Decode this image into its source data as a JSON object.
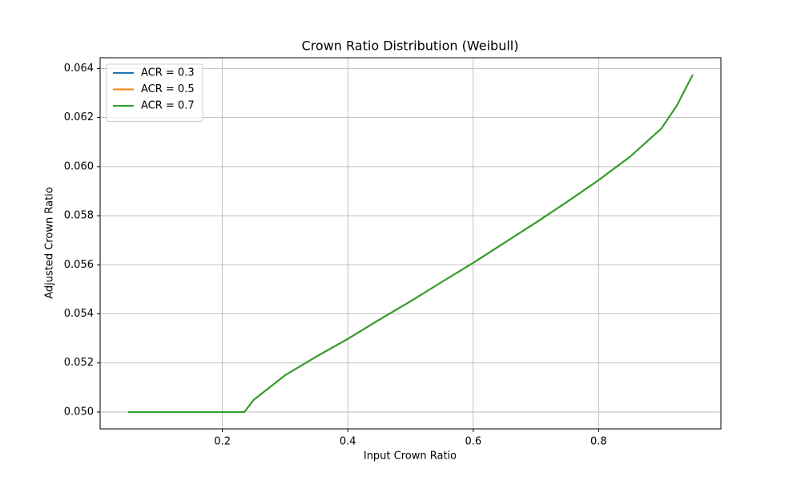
{
  "chart_data": {
    "type": "line",
    "title": "Crown Ratio Distribution (Weibull)",
    "x_label": "Input Crown Ratio",
    "y_label": "Adjusted Crown Ratio",
    "x": [
      0.05,
      0.1,
      0.15,
      0.2,
      0.235,
      0.25,
      0.3,
      0.35,
      0.4,
      0.45,
      0.5,
      0.55,
      0.6,
      0.65,
      0.7,
      0.75,
      0.8,
      0.85,
      0.9,
      0.925,
      0.95
    ],
    "series": [
      {
        "name": "ACR = 0.3",
        "color": "#1f77b4",
        "values": [
          0.05,
          0.05,
          0.05,
          0.05,
          0.05,
          0.0505,
          0.0515,
          0.05226,
          0.05298,
          0.05376,
          0.05451,
          0.0553,
          0.05608,
          0.0569,
          0.05772,
          0.05857,
          0.05945,
          0.0604,
          0.06155,
          0.0625,
          0.06374
        ]
      },
      {
        "name": "ACR = 0.5",
        "color": "#ff7f0e",
        "values": [
          0.05,
          0.05,
          0.05,
          0.05,
          0.05,
          0.0505,
          0.0515,
          0.05226,
          0.05298,
          0.05376,
          0.05451,
          0.0553,
          0.05608,
          0.0569,
          0.05772,
          0.05857,
          0.05945,
          0.0604,
          0.06155,
          0.0625,
          0.06374
        ]
      },
      {
        "name": "ACR = 0.7",
        "color": "#2ca02c",
        "values": [
          0.05,
          0.05,
          0.05,
          0.05,
          0.05,
          0.0505,
          0.0515,
          0.05226,
          0.05298,
          0.05376,
          0.05451,
          0.0553,
          0.05608,
          0.0569,
          0.05772,
          0.05857,
          0.05945,
          0.0604,
          0.06155,
          0.0625,
          0.06374
        ]
      }
    ],
    "xlim": [
      0.005,
      0.995
    ],
    "ylim": [
      0.0493125,
      0.0644375
    ],
    "xticks": [
      0.2,
      0.4,
      0.6,
      0.8
    ],
    "yticks": [
      {
        "value": 0.05,
        "label": "0.050"
      },
      0.052,
      0.054,
      0.056,
      0.058,
      {
        "value": 0.06,
        "label": "0.060"
      },
      0.062,
      0.064
    ],
    "grid": true,
    "legend": "upper left"
  }
}
